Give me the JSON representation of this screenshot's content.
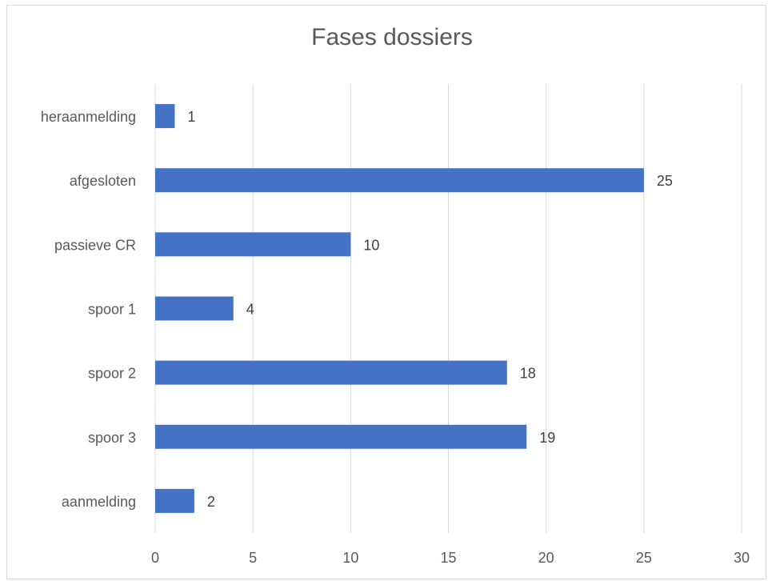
{
  "chart_data": {
    "type": "bar",
    "orientation": "horizontal",
    "title": "Fases dossiers",
    "xlabel": "",
    "ylabel": "",
    "categories": [
      "heraanmelding",
      "afgesloten",
      "passieve CR",
      "spoor 1",
      "spoor 2",
      "spoor 3",
      "aanmelding"
    ],
    "values": [
      1,
      25,
      10,
      4,
      18,
      19,
      2
    ],
    "xlim": [
      0,
      30
    ],
    "xticks": [
      "0",
      "5",
      "10",
      "15",
      "20",
      "25",
      "30"
    ],
    "grid": "vertical",
    "legend": "none",
    "bar_color": "#4472c4",
    "grid_color": "#d9d9d9"
  }
}
